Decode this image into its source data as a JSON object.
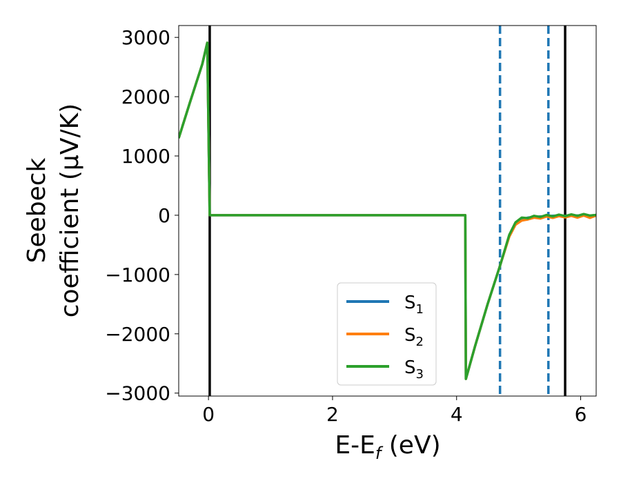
{
  "chart_data": {
    "type": "line",
    "xlabel_main": "E-E",
    "xlabel_sub": "f",
    "xlabel_unit": " (eV)",
    "ylabel_line1": "Seebeck",
    "ylabel_line2": "coefficient  (μV/K)",
    "xlim": [
      -0.48,
      6.25
    ],
    "ylim": [
      -3050,
      3200
    ],
    "x_ticks": [
      0,
      2,
      4,
      6
    ],
    "x_tick_labels": [
      "0",
      "2",
      "4",
      "6"
    ],
    "y_ticks": [
      3000,
      2000,
      1000,
      0,
      -1000,
      -2000,
      -3000
    ],
    "y_tick_labels": [
      "3000",
      "2000",
      "1000",
      "0",
      "−1000",
      "−2000",
      "−3000"
    ],
    "grid": false,
    "legend_position": "lower-center",
    "vlines": [
      {
        "x": 0.02,
        "style": "solid",
        "color": "#000000"
      },
      {
        "x": 4.7,
        "style": "dashed",
        "color": "#1f77b4"
      },
      {
        "x": 5.48,
        "style": "dashed",
        "color": "#1f77b4"
      },
      {
        "x": 5.75,
        "style": "solid",
        "color": "#000000"
      }
    ],
    "series": [
      {
        "name": "S",
        "sub": "1",
        "color": "#1f77b4",
        "x": [
          -0.48,
          -0.3,
          -0.1,
          -0.02,
          0.02,
          0.05,
          1.0,
          2.0,
          3.0,
          4.0,
          4.14,
          4.15,
          4.3,
          4.5,
          4.7,
          4.85,
          4.95,
          5.05,
          5.15,
          5.25,
          5.35,
          5.45,
          5.55,
          5.65,
          5.75,
          5.85,
          5.95,
          6.05,
          6.15,
          6.25
        ],
        "y": [
          1300,
          1900,
          2550,
          2910,
          0,
          0,
          0,
          0,
          0,
          0,
          0,
          -2760,
          -2200,
          -1500,
          -850,
          -350,
          -150,
          -70,
          -40,
          -30,
          -20,
          -15,
          -10,
          -5,
          -10,
          0,
          -5,
          0,
          -5,
          0
        ]
      },
      {
        "name": "S",
        "sub": "2",
        "color": "#ff7f0e",
        "x": [
          -0.48,
          -0.3,
          -0.1,
          -0.02,
          0.02,
          0.05,
          1.0,
          2.0,
          3.0,
          4.0,
          4.14,
          4.15,
          4.3,
          4.5,
          4.7,
          4.85,
          4.95,
          5.05,
          5.15,
          5.25,
          5.35,
          5.45,
          5.55,
          5.65,
          5.75,
          5.85,
          5.95,
          6.05,
          6.15,
          6.25
        ],
        "y": [
          1300,
          1900,
          2550,
          2910,
          0,
          0,
          0,
          0,
          0,
          0,
          0,
          -2760,
          -2200,
          -1500,
          -850,
          -360,
          -160,
          -90,
          -70,
          -40,
          -55,
          -20,
          -45,
          -15,
          -35,
          -10,
          -40,
          -5,
          -45,
          -5
        ]
      },
      {
        "name": "S",
        "sub": "3",
        "color": "#2ca02c",
        "x": [
          -0.48,
          -0.3,
          -0.1,
          -0.02,
          0.02,
          0.05,
          1.0,
          2.0,
          3.0,
          4.0,
          4.14,
          4.15,
          4.3,
          4.5,
          4.7,
          4.85,
          4.95,
          5.05,
          5.15,
          5.25,
          5.35,
          5.45,
          5.55,
          5.65,
          5.75,
          5.85,
          5.95,
          6.05,
          6.15,
          6.25
        ],
        "y": [
          1300,
          1900,
          2550,
          2910,
          0,
          0,
          0,
          0,
          0,
          0,
          0,
          -2760,
          -2200,
          -1500,
          -850,
          -330,
          -120,
          -40,
          -50,
          -10,
          -30,
          5,
          -20,
          10,
          -15,
          15,
          -10,
          20,
          -5,
          5
        ]
      }
    ]
  }
}
